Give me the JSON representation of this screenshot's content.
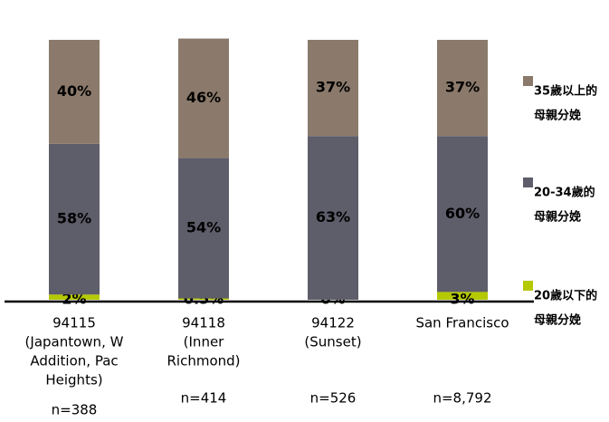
{
  "chart_data": {
    "type": "stacked_bar",
    "categories": [
      [
        "94115",
        "(Japantown, W",
        "Addition, Pac",
        "Heights)"
      ],
      [
        "94118",
        "(Inner",
        "Richmond)"
      ],
      [
        "94122",
        "(Sunset)"
      ],
      [
        "San Francisco"
      ]
    ],
    "sample_sizes": [
      "n=388",
      "n=414",
      "n=526",
      "n=8,792"
    ],
    "ylim": [
      0,
      100
    ],
    "series": [
      {
        "name": [
          "20歲以下的",
          "母親分娩"
        ],
        "color": "#b5c900",
        "values": [
          2,
          0.5,
          0,
          3
        ],
        "value_labels": [
          "2%",
          "0.5%",
          "0%",
          "3%"
        ]
      },
      {
        "name": [
          "20-34歲的",
          "母親分娩"
        ],
        "color": "#5e5d6a",
        "values": [
          58,
          54,
          63,
          60
        ],
        "value_labels": [
          "58%",
          "54%",
          "63%",
          "60%"
        ]
      },
      {
        "name": [
          "35歲以上的",
          "母親分娩"
        ],
        "color": "#8b7a6b",
        "values": [
          40,
          46,
          37,
          37
        ],
        "value_labels": [
          "40%",
          "46%",
          "37%",
          "37%"
        ]
      }
    ]
  }
}
